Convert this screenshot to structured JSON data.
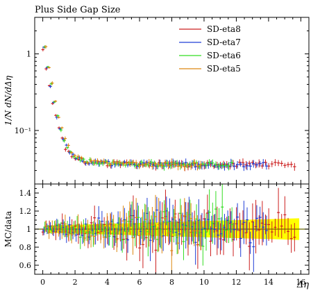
{
  "chart_data": {
    "type": "scatter",
    "title": "Plus Side Gap Size",
    "xlabel": "Δη",
    "ylabel": "1/N dN/dΔη",
    "ratio_ylabel": "MC/data",
    "log_y": true,
    "xlim": [
      -0.5,
      16.5
    ],
    "ylim": [
      0.02,
      3
    ],
    "ratio_ylim": [
      0.5,
      1.5
    ],
    "x_ticks": [
      "0",
      "2",
      "4",
      "6",
      "8",
      "10",
      "12",
      "14",
      "16"
    ],
    "y_ticks": [
      {
        "v": 1,
        "label": "1"
      },
      {
        "v": 0.1,
        "label": "10⁻¹"
      }
    ],
    "ratio_ticks": [
      {
        "v": 0.6,
        "label": "0.6"
      },
      {
        "v": 0.8,
        "label": "0.8"
      },
      {
        "v": 1.0,
        "label": "1"
      },
      {
        "v": 1.2,
        "label": "1.2"
      },
      {
        "v": 1.4,
        "label": "1.4"
      }
    ],
    "legend_position": "top-right",
    "series": [
      {
        "name": "SD-eta8",
        "color": "#cc1f1f",
        "xmax": 15.8
      },
      {
        "name": "SD-eta7",
        "color": "#1f3dd6",
        "xmax": 13.9
      },
      {
        "name": "SD-eta6",
        "color": "#33dd22",
        "xmax": 11.8
      },
      {
        "name": "SD-eta5",
        "color": "#dd8811",
        "xmax": 9.8
      }
    ],
    "band_color": "#ffff00",
    "band_x": [
      0.3,
      15.9
    ],
    "band_halfwidth": [
      0.04,
      0.12
    ]
  }
}
